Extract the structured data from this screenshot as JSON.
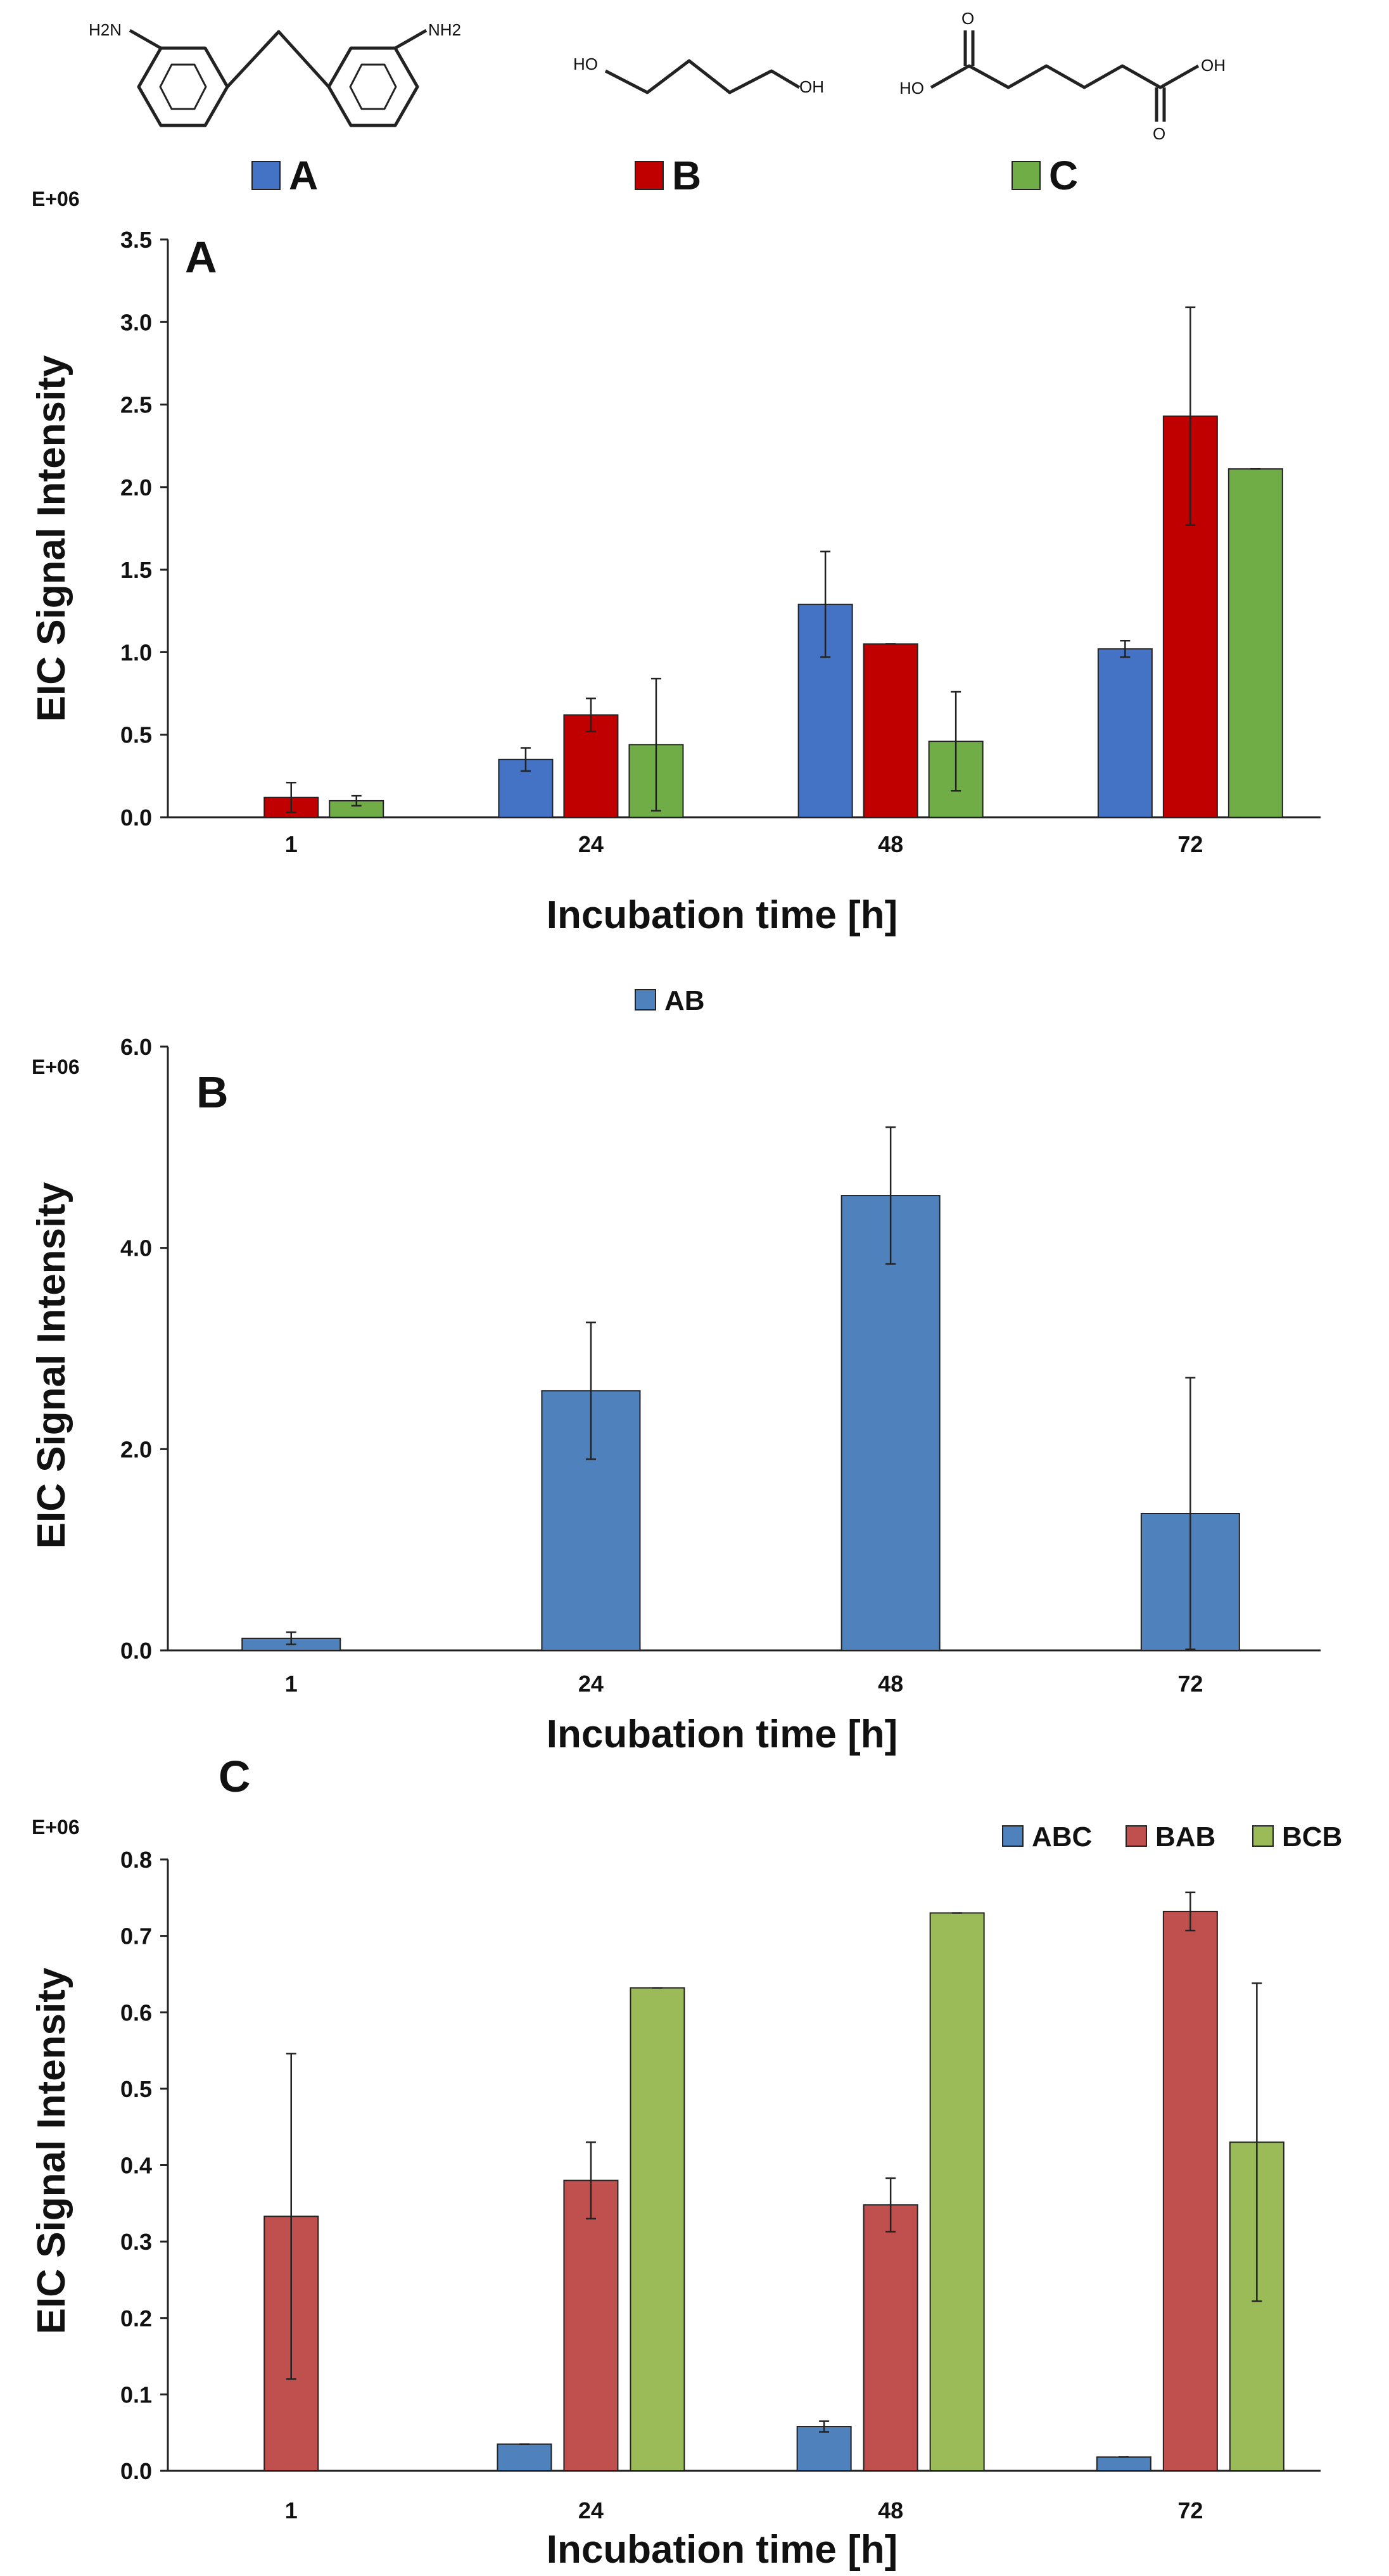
{
  "structures": [
    {
      "name": "diamine",
      "labels": [
        "H2N",
        "NH2"
      ]
    },
    {
      "name": "diol",
      "labels": [
        "HO",
        "OH"
      ]
    },
    {
      "name": "diacid",
      "labels": [
        "HO",
        "OH",
        "O",
        "O"
      ]
    }
  ],
  "chart_data": [
    {
      "id": "A",
      "type": "bar",
      "panel_label": "A",
      "exponent_label": "E+06",
      "xlabel": "Incubation time [h]",
      "ylabel": "EIC Signal Intensity",
      "categories": [
        "1",
        "24",
        "48",
        "72"
      ],
      "ylim": [
        0,
        3.5
      ],
      "yticks": [
        "0.0",
        "0.5",
        "1.0",
        "1.5",
        "2.0",
        "2.5",
        "3.0",
        "3.5"
      ],
      "series": [
        {
          "name": "A",
          "color": "#4472C4",
          "values": [
            null,
            0.35,
            1.29,
            1.02
          ],
          "errors": [
            null,
            0.07,
            0.32,
            0.05
          ]
        },
        {
          "name": "B",
          "color": "#C00000",
          "values": [
            0.12,
            0.62,
            1.05,
            2.43
          ],
          "errors": [
            0.09,
            0.1,
            0,
            0.66
          ]
        },
        {
          "name": "C",
          "color": "#70AD47",
          "values": [
            0.1,
            0.44,
            0.46,
            2.11
          ],
          "errors": [
            0.03,
            0.4,
            0.3,
            0
          ]
        }
      ],
      "legend": "top"
    },
    {
      "id": "B",
      "type": "bar",
      "panel_label": "B",
      "exponent_label": "E+06",
      "xlabel": "Incubation time [h]",
      "ylabel": "EIC Signal Intensity",
      "categories": [
        "1",
        "24",
        "48",
        "72"
      ],
      "ylim": [
        0,
        6.0
      ],
      "yticks": [
        "0.0",
        "2.0",
        "4.0",
        "6.0"
      ],
      "series": [
        {
          "name": "AB",
          "color": "#4F81BD",
          "values": [
            0.12,
            2.58,
            4.52,
            1.36
          ],
          "errors": [
            0.06,
            0.68,
            0.68,
            1.35
          ]
        }
      ],
      "legend": "top"
    },
    {
      "id": "C",
      "type": "bar",
      "panel_label": "C",
      "exponent_label": "E+06",
      "xlabel": "Incubation time [h]",
      "ylabel": "EIC Signal Intensity",
      "categories": [
        "1",
        "24",
        "48",
        "72"
      ],
      "ylim": [
        0,
        0.8
      ],
      "yticks": [
        "0.0",
        "0.1",
        "0.2",
        "0.3",
        "0.4",
        "0.5",
        "0.6",
        "0.7",
        "0.8"
      ],
      "series": [
        {
          "name": "ABC",
          "color": "#4F81BD",
          "values": [
            null,
            0.035,
            0.058,
            0.018
          ],
          "errors": [
            null,
            0,
            0.007,
            0
          ]
        },
        {
          "name": "BAB",
          "color": "#C0504D",
          "values": [
            0.333,
            0.38,
            0.348,
            0.732
          ],
          "errors": [
            0.213,
            0.05,
            0.035,
            0.025
          ]
        },
        {
          "name": "BCB",
          "color": "#9BBB59",
          "values": [
            null,
            0.632,
            0.73,
            0.43
          ],
          "errors": [
            null,
            0,
            0,
            0.208
          ]
        }
      ],
      "legend": "top-right"
    }
  ]
}
